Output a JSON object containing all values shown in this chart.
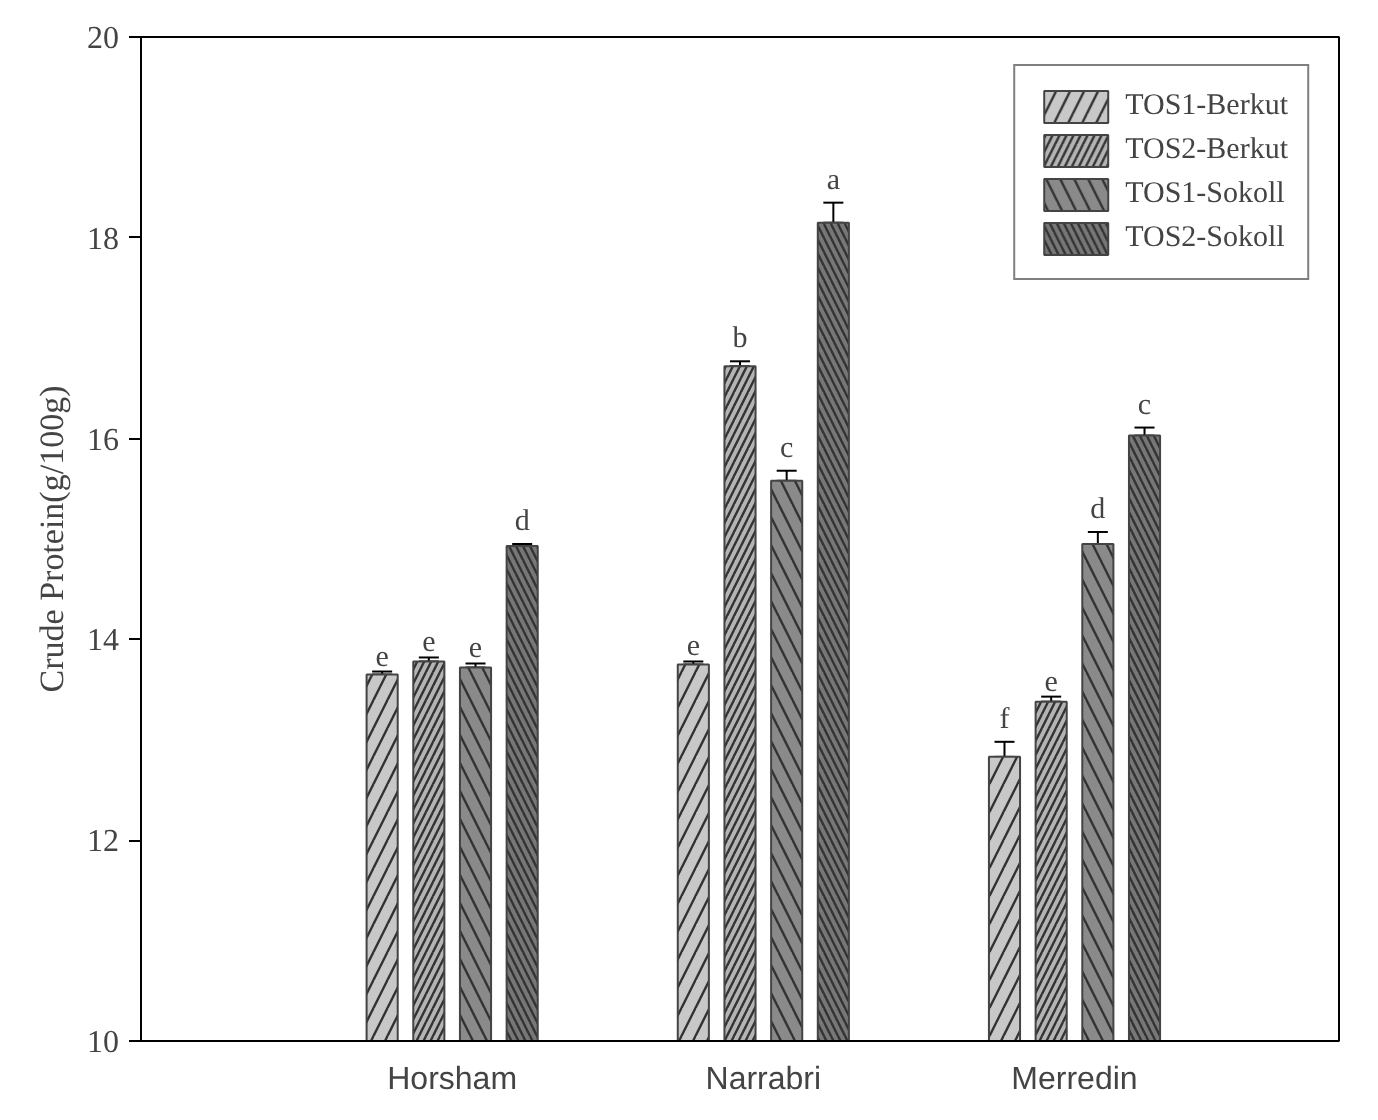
{
  "chart_data": {
    "type": "bar",
    "ylabel": "Crude Protein(g/100g)",
    "categories": [
      "Horsham",
      "Narrabri",
      "Merredin"
    ],
    "ylim": [
      10,
      20
    ],
    "yticks": [
      10,
      12,
      14,
      16,
      18,
      20
    ],
    "grid": false,
    "legend": "top right",
    "series": [
      {
        "name": "TOS1-Berkut",
        "color": "#c8c8c8",
        "values": [
          13.65,
          13.75,
          12.83
        ],
        "errors": [
          0.03,
          0.03,
          0.15
        ],
        "value_labels": [
          "e",
          "e",
          "f"
        ]
      },
      {
        "name": "TOS2-Berkut",
        "color": "#b4b4b4",
        "values": [
          13.78,
          16.72,
          13.38
        ],
        "errors": [
          0.04,
          0.05,
          0.05
        ],
        "value_labels": [
          "e",
          "b",
          "e"
        ]
      },
      {
        "name": "TOS1-Sokoll",
        "color": "#8a8a8a",
        "values": [
          13.72,
          15.58,
          14.95
        ],
        "errors": [
          0.04,
          0.1,
          0.12
        ],
        "value_labels": [
          "e",
          "c",
          "d"
        ]
      },
      {
        "name": "TOS2-Sokoll",
        "color": "#777777",
        "values": [
          14.93,
          18.15,
          16.03
        ],
        "errors": [
          0.02,
          0.2,
          0.08
        ],
        "value_labels": [
          "d",
          "a",
          "c"
        ]
      }
    ]
  }
}
